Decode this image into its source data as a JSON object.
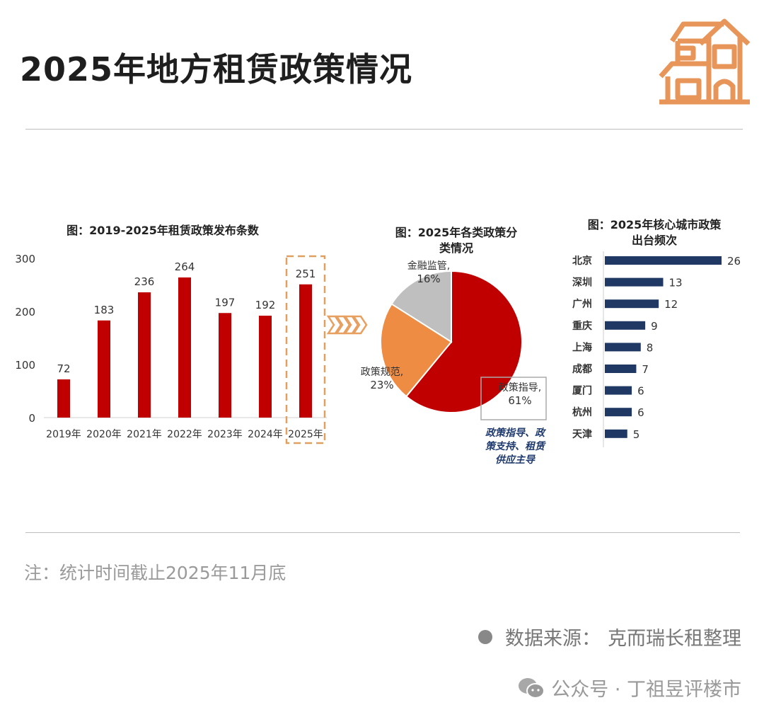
{
  "title": "2025年地方租赁政策情况",
  "icons": {
    "logo": "house-icon",
    "arrows": "chevron-right-icon",
    "account": "wechat-icon"
  },
  "colors": {
    "bar": "#c00000",
    "pie_guidance": "#c00000",
    "pie_regulation": "#ee8c44",
    "pie_finance": "#bfbfbf",
    "city_bar": "#1f3864",
    "highlight_box": "#e0a060",
    "annotation": "#1f3a6e"
  },
  "note": "注：统计时间截止2025年11月底",
  "source": {
    "label": "数据来源：",
    "value": "克而瑞长租整理"
  },
  "account": "公众号 · 丁祖昱评楼市",
  "chart_data": [
    {
      "type": "bar",
      "title": "图：2019-2025年租赁政策发布条数",
      "categories": [
        "2019年",
        "2020年",
        "2021年",
        "2022年",
        "2023年",
        "2024年",
        "2025年"
      ],
      "values": [
        72,
        183,
        236,
        264,
        197,
        192,
        251
      ],
      "yticks": [
        0,
        100,
        200,
        300
      ],
      "ylim": [
        0,
        300
      ],
      "highlight": "2025年",
      "grid": false
    },
    {
      "type": "pie",
      "title_line1": "图：2025年各类政策分",
      "title_line2": "类情况",
      "slices": [
        {
          "name": "政策指导",
          "value": 61,
          "label": "政策指导,",
          "pct": "61%"
        },
        {
          "name": "政策规范",
          "value": 23,
          "label": "政策规范,",
          "pct": "23%"
        },
        {
          "name": "金融监管",
          "value": 16,
          "label": "金融监管,",
          "pct": "16%"
        }
      ],
      "annotation": [
        "政策指导、政",
        "策支持、租赁",
        "供应主导"
      ]
    },
    {
      "type": "bar",
      "orientation": "horizontal",
      "title_line1": "图：2025年核心城市政策",
      "title_line2": "出台频次",
      "categories": [
        "北京",
        "深圳",
        "广州",
        "重庆",
        "上海",
        "成都",
        "厦门",
        "杭州",
        "天津"
      ],
      "values": [
        26,
        13,
        12,
        9,
        8,
        7,
        6,
        6,
        5
      ]
    }
  ]
}
